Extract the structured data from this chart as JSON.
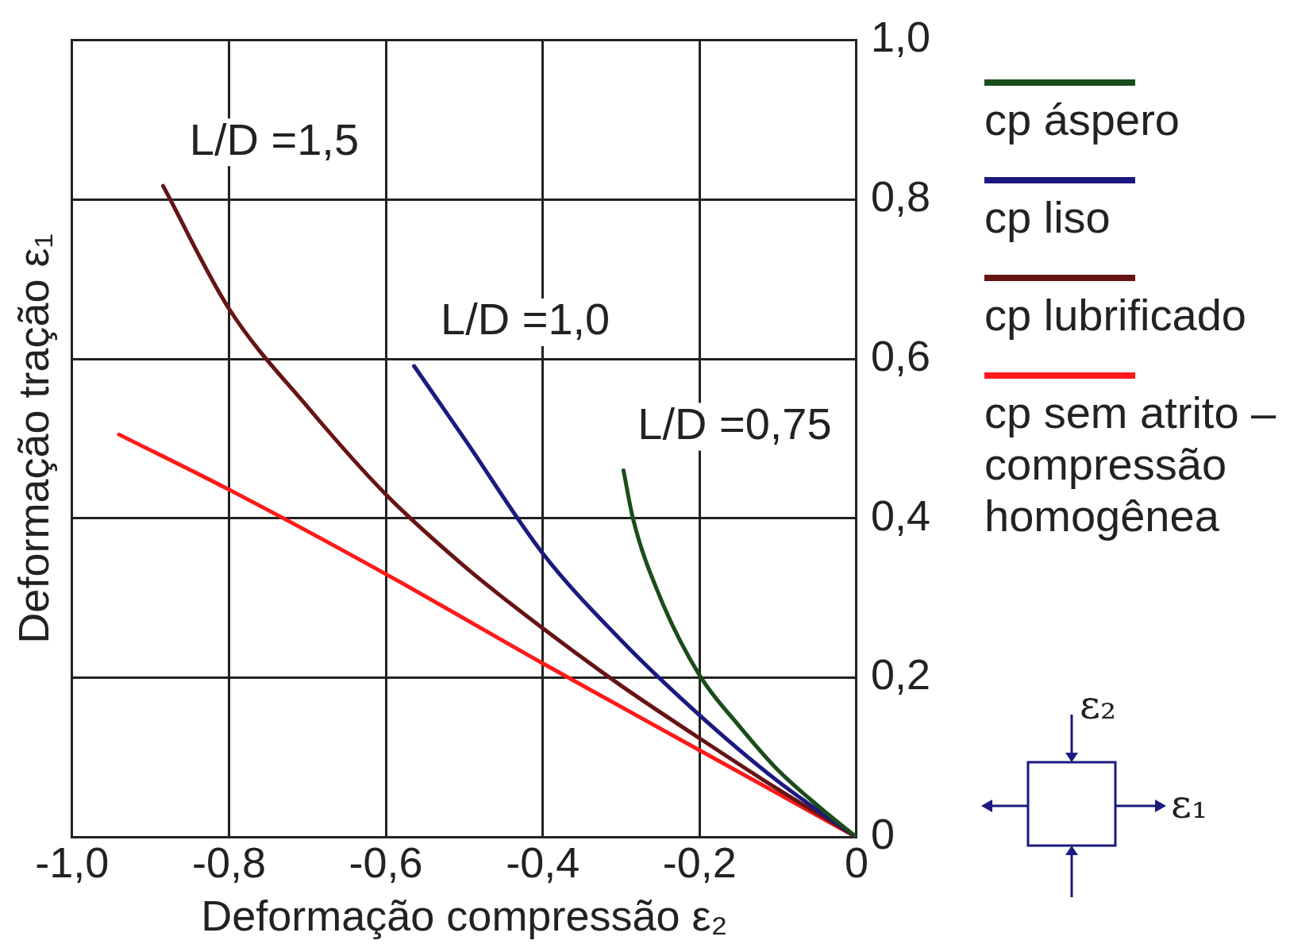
{
  "chart_data": {
    "type": "line",
    "xlabel": "Deformação compressão ε₂",
    "ylabel": "Deformação tração ε₁",
    "xlim": [
      -1,
      0
    ],
    "ylim": [
      0,
      1
    ],
    "xticks": [
      {
        "value": -1,
        "label": "-1,0"
      },
      {
        "value": -0.8,
        "label": "-0,8"
      },
      {
        "value": -0.6,
        "label": "-0,6"
      },
      {
        "value": -0.4,
        "label": "-0,4"
      },
      {
        "value": -0.2,
        "label": "-0,2"
      },
      0
    ],
    "yticks": [
      0,
      {
        "value": 0.2,
        "label": "0,2"
      },
      {
        "value": 0.4,
        "label": "0,4"
      },
      {
        "value": 0.6,
        "label": "0,6"
      },
      {
        "value": 0.8,
        "label": "0,8"
      },
      {
        "value": 1,
        "label": "1,0"
      }
    ],
    "grid": true,
    "legend": "right",
    "marker": "none",
    "line_style": "solid",
    "series": [
      {
        "name": "cp áspero",
        "color": "#1a4d1a",
        "x": [
          -0.297,
          -0.285,
          -0.25,
          -0.2,
          -0.15,
          -0.1,
          -0.05,
          0
        ],
        "values": [
          0.46,
          0.4,
          0.3,
          0.203,
          0.14,
          0.084,
          0.04,
          0
        ]
      },
      {
        "name": "cp liso",
        "color": "#1a1a80",
        "x": [
          -0.564,
          -0.5,
          -0.4,
          -0.3,
          -0.2,
          -0.1,
          0
        ],
        "values": [
          0.591,
          0.5,
          0.356,
          0.247,
          0.153,
          0.07,
          0
        ]
      },
      {
        "name": "cp lubrificado",
        "color": "#661414",
        "x": [
          -0.884,
          -0.8,
          -0.7,
          -0.6,
          -0.5,
          -0.4,
          -0.3,
          -0.2,
          -0.1,
          0
        ],
        "values": [
          0.817,
          0.663,
          0.54,
          0.43,
          0.34,
          0.262,
          0.19,
          0.124,
          0.06,
          0
        ]
      },
      {
        "name": "cp sem atrito – compressão homogênea",
        "color": "#ff1a1a",
        "x": [
          -0.94,
          -0.8,
          -0.6,
          -0.4,
          -0.2,
          0
        ],
        "values": [
          0.505,
          0.436,
          0.33,
          0.218,
          0.109,
          0
        ]
      }
    ],
    "annotations": [
      {
        "text": "L/D =1,5",
        "x": -0.884,
        "y": 0.817
      },
      {
        "text": "L/D =1,0",
        "x": -0.564,
        "y": 0.591
      },
      {
        "text": "L/D =0,75",
        "x": -0.297,
        "y": 0.46
      },
      "ε₂",
      "ε₁"
    ]
  }
}
